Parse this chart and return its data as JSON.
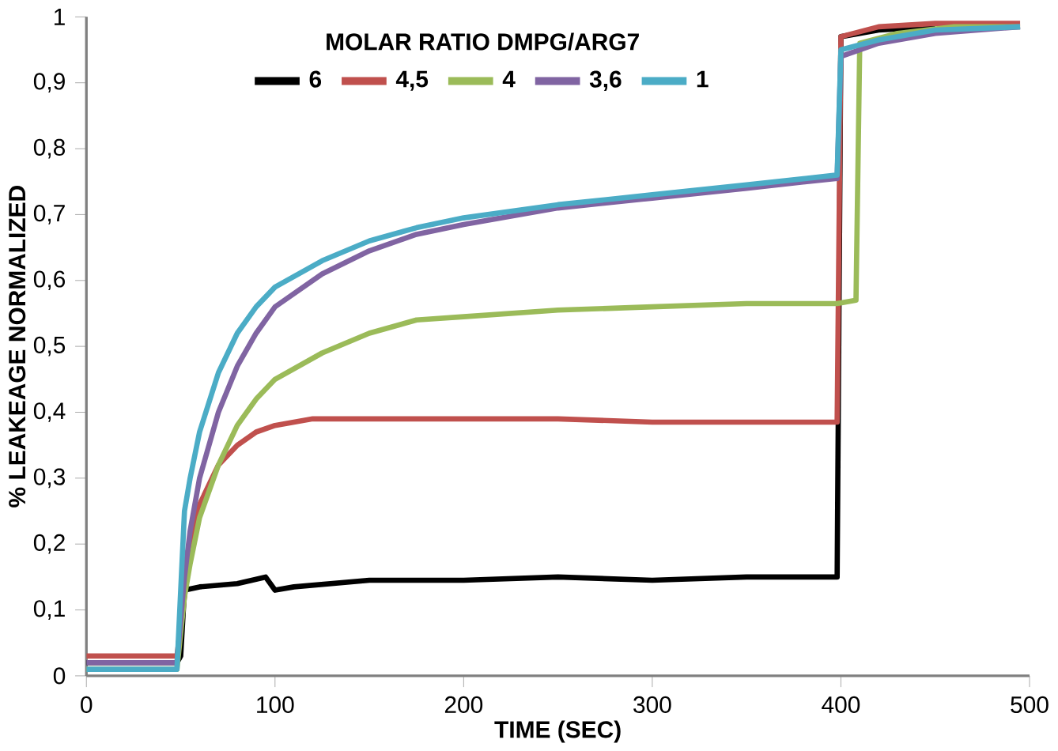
{
  "chart_data": {
    "type": "line",
    "xlabel": "TIME (SEC)",
    "ylabel": "% LEAKEAGE NORMALIZED",
    "legend_title": "MOLAR RATIO DMPG/ARG7",
    "legend": "top",
    "grid": false,
    "marker": "none",
    "line_style": "solid",
    "xlim": [
      0,
      500
    ],
    "xticks": [
      0,
      100,
      200,
      300,
      400,
      500
    ],
    "ylim": [
      0,
      1
    ],
    "yticks": [
      0,
      {
        "value": 0.1,
        "label": "0,1"
      },
      {
        "value": 0.2,
        "label": "0,2"
      },
      {
        "value": 0.3,
        "label": "0,3"
      },
      {
        "value": 0.4,
        "label": "0,4"
      },
      {
        "value": 0.5,
        "label": "0,5"
      },
      {
        "value": 0.6,
        "label": "0,6"
      },
      {
        "value": 0.7,
        "label": "0,7"
      },
      {
        "value": 0.8,
        "label": "0,8"
      },
      {
        "value": 0.9,
        "label": "0,9"
      },
      1
    ],
    "series": [
      {
        "name": "6",
        "color": "#000000",
        "x": [
          0,
          48,
          50,
          52,
          60,
          80,
          95,
          100,
          110,
          150,
          200,
          250,
          300,
          350,
          398,
          400,
          420,
          450
        ],
        "values": [
          0.02,
          0.02,
          0.03,
          0.13,
          0.135,
          0.14,
          0.15,
          0.13,
          0.135,
          0.145,
          0.145,
          0.15,
          0.145,
          0.15,
          0.15,
          0.97,
          0.98,
          0.985
        ]
      },
      {
        "name": "4,5",
        "color": "#c0504d",
        "x": [
          0,
          48,
          52,
          55,
          60,
          70,
          80,
          90,
          100,
          120,
          150,
          200,
          250,
          300,
          350,
          398,
          400,
          420,
          450,
          495
        ],
        "values": [
          0.03,
          0.03,
          0.12,
          0.2,
          0.26,
          0.32,
          0.35,
          0.37,
          0.38,
          0.39,
          0.39,
          0.39,
          0.39,
          0.385,
          0.385,
          0.385,
          0.97,
          0.985,
          0.99,
          0.99
        ]
      },
      {
        "name": "4",
        "color": "#9bbb59",
        "x": [
          0,
          48,
          52,
          55,
          60,
          70,
          80,
          90,
          100,
          125,
          150,
          175,
          200,
          250,
          300,
          350,
          398,
          408,
          410,
          430,
          460,
          495
        ],
        "values": [
          0.01,
          0.01,
          0.12,
          0.17,
          0.24,
          0.32,
          0.38,
          0.42,
          0.45,
          0.49,
          0.52,
          0.54,
          0.545,
          0.555,
          0.56,
          0.565,
          0.565,
          0.57,
          0.96,
          0.975,
          0.985,
          0.985
        ]
      },
      {
        "name": "3,6",
        "color": "#8064a2",
        "x": [
          0,
          48,
          52,
          55,
          60,
          70,
          80,
          90,
          100,
          125,
          150,
          175,
          200,
          250,
          300,
          350,
          398,
          400,
          420,
          450,
          495
        ],
        "values": [
          0.02,
          0.02,
          0.15,
          0.22,
          0.3,
          0.4,
          0.47,
          0.52,
          0.56,
          0.61,
          0.645,
          0.67,
          0.685,
          0.71,
          0.725,
          0.74,
          0.755,
          0.94,
          0.96,
          0.975,
          0.985
        ]
      },
      {
        "name": "1",
        "color": "#4bacc6",
        "x": [
          0,
          48,
          52,
          55,
          60,
          70,
          80,
          90,
          100,
          125,
          150,
          175,
          200,
          250,
          300,
          350,
          398,
          400,
          420,
          450,
          495
        ],
        "values": [
          0.01,
          0.01,
          0.25,
          0.3,
          0.37,
          0.46,
          0.52,
          0.56,
          0.59,
          0.63,
          0.66,
          0.68,
          0.695,
          0.715,
          0.73,
          0.745,
          0.76,
          0.95,
          0.965,
          0.98,
          0.985
        ]
      }
    ]
  }
}
